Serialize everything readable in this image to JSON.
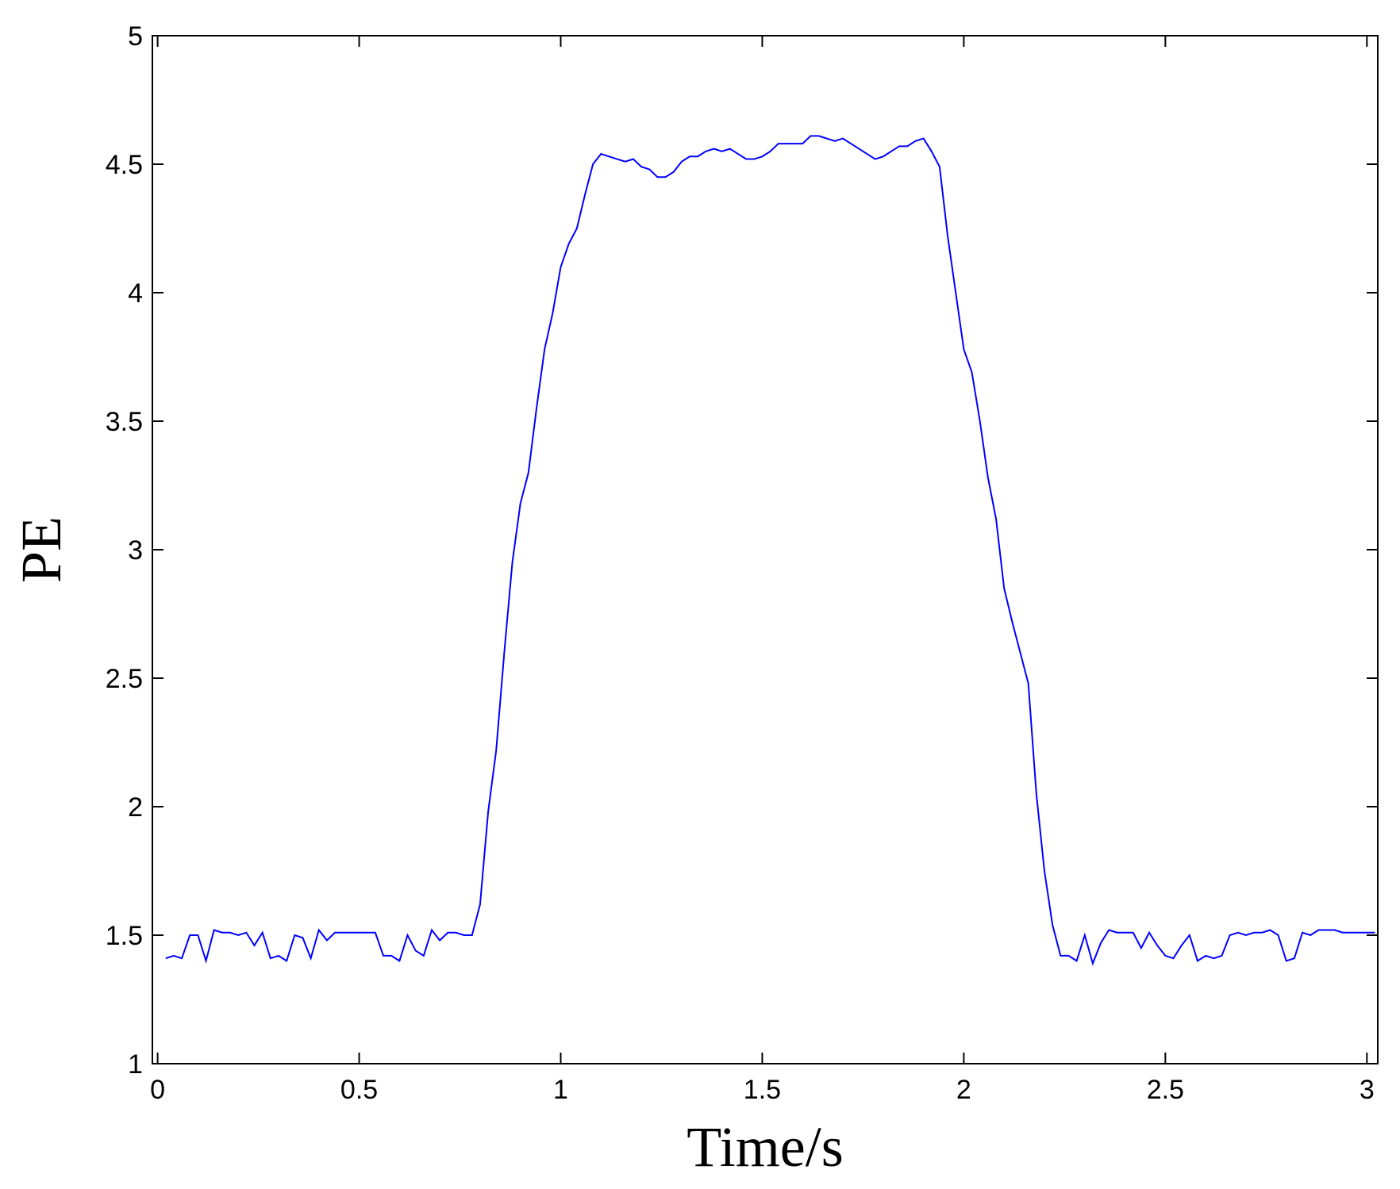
{
  "chart_data": {
    "type": "line",
    "xlabel": "Time/s",
    "ylabel": "PE",
    "x": [
      0.02,
      0.04,
      0.06,
      0.08,
      0.1,
      0.12,
      0.14,
      0.16,
      0.18,
      0.2,
      0.22,
      0.24,
      0.26,
      0.28,
      0.3,
      0.32,
      0.34,
      0.36,
      0.38,
      0.4,
      0.42,
      0.44,
      0.46,
      0.48,
      0.5,
      0.52,
      0.54,
      0.56,
      0.58,
      0.6,
      0.62,
      0.64,
      0.66,
      0.68,
      0.7,
      0.72,
      0.74,
      0.76,
      0.78,
      0.8,
      0.82,
      0.84,
      0.86,
      0.88,
      0.9,
      0.92,
      0.94,
      0.96,
      0.98,
      1,
      1.02,
      1.04,
      1.06,
      1.08,
      1.1,
      1.12,
      1.14,
      1.16,
      1.18,
      1.2,
      1.22,
      1.24,
      1.26,
      1.28,
      1.3,
      1.32,
      1.34,
      1.36,
      1.38,
      1.4,
      1.42,
      1.44,
      1.46,
      1.48,
      1.5,
      1.52,
      1.54,
      1.56,
      1.58,
      1.6,
      1.62,
      1.64,
      1.66,
      1.68,
      1.7,
      1.72,
      1.74,
      1.76,
      1.78,
      1.8,
      1.82,
      1.84,
      1.86,
      1.88,
      1.9,
      1.92,
      1.94,
      1.96,
      1.98,
      2,
      2.02,
      2.04,
      2.06,
      2.08,
      2.1,
      2.12,
      2.14,
      2.16,
      2.18,
      2.2,
      2.22,
      2.24,
      2.26,
      2.28,
      2.3,
      2.32,
      2.34,
      2.36,
      2.38,
      2.4,
      2.42,
      2.44,
      2.46,
      2.48,
      2.5,
      2.52,
      2.54,
      2.56,
      2.58,
      2.6,
      2.62,
      2.64,
      2.66,
      2.68,
      2.7,
      2.72,
      2.74,
      2.76,
      2.78,
      2.8,
      2.82,
      2.84,
      2.86,
      2.88,
      2.9,
      2.92,
      2.94,
      2.96,
      2.98,
      3,
      3.02
    ],
    "values": [
      1.41,
      1.42,
      1.41,
      1.5,
      1.5,
      1.4,
      1.52,
      1.51,
      1.51,
      1.5,
      1.51,
      1.46,
      1.51,
      1.41,
      1.42,
      1.4,
      1.5,
      1.49,
      1.41,
      1.52,
      1.48,
      1.51,
      1.51,
      1.51,
      1.51,
      1.51,
      1.51,
      1.42,
      1.42,
      1.4,
      1.5,
      1.44,
      1.42,
      1.52,
      1.48,
      1.51,
      1.51,
      1.5,
      1.5,
      1.62,
      1.98,
      2.22,
      2.6,
      2.95,
      3.18,
      3.3,
      3.55,
      3.78,
      3.92,
      4.1,
      4.19,
      4.25,
      4.38,
      4.5,
      4.54,
      4.53,
      4.52,
      4.51,
      4.52,
      4.49,
      4.48,
      4.45,
      4.45,
      4.47,
      4.51,
      4.53,
      4.53,
      4.55,
      4.56,
      4.55,
      4.56,
      4.54,
      4.52,
      4.52,
      4.53,
      4.55,
      4.58,
      4.58,
      4.58,
      4.58,
      4.61,
      4.61,
      4.6,
      4.59,
      4.6,
      4.58,
      4.56,
      4.54,
      4.52,
      4.53,
      4.55,
      4.57,
      4.57,
      4.59,
      4.6,
      4.55,
      4.49,
      4.22,
      4.0,
      3.78,
      3.69,
      3.5,
      3.28,
      3.12,
      2.85,
      2.72,
      2.6,
      2.48,
      2.05,
      1.75,
      1.54,
      1.42,
      1.42,
      1.4,
      1.5,
      1.39,
      1.47,
      1.52,
      1.51,
      1.51,
      1.51,
      1.45,
      1.51,
      1.46,
      1.42,
      1.41,
      1.46,
      1.5,
      1.4,
      1.42,
      1.41,
      1.42,
      1.5,
      1.51,
      1.5,
      1.51,
      1.51,
      1.52,
      1.5,
      1.4,
      1.41,
      1.51,
      1.5,
      1.52,
      1.52,
      1.52,
      1.51,
      1.51,
      1.51,
      1.51,
      1.51
    ],
    "color": "#0000ff",
    "xlim": [
      -0.013,
      3.027
    ],
    "ylim": [
      1,
      5
    ],
    "xticks": [
      0,
      0.5,
      1,
      1.5,
      2,
      2.5,
      3
    ],
    "yticks": [
      1,
      1.5,
      2,
      2.5,
      3,
      3.5,
      4,
      4.5,
      5
    ]
  }
}
